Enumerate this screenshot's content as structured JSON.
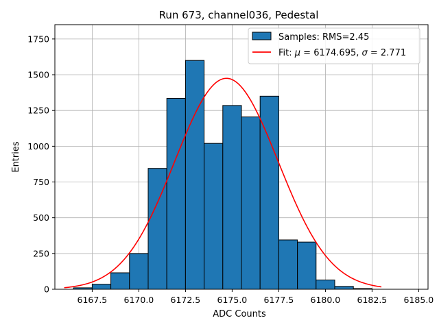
{
  "chart_data": {
    "type": "bar",
    "title": "Run 673, channel036, Pedestal",
    "xlabel": "ADC Counts",
    "ylabel": "Entries",
    "xlim": [
      6165.5,
      6185.5
    ],
    "ylim": [
      0,
      1850
    ],
    "bin_width": 1,
    "bins": [
      {
        "x": 6167,
        "count": 10
      },
      {
        "x": 6168,
        "count": 35
      },
      {
        "x": 6169,
        "count": 115
      },
      {
        "x": 6170,
        "count": 250
      },
      {
        "x": 6171,
        "count": 845
      },
      {
        "x": 6172,
        "count": 1335
      },
      {
        "x": 6173,
        "count": 1600
      },
      {
        "x": 6174,
        "count": 1020
      },
      {
        "x": 6175,
        "count": 1285
      },
      {
        "x": 6176,
        "count": 1205
      },
      {
        "x": 6177,
        "count": 1350
      },
      {
        "x": 6178,
        "count": 345
      },
      {
        "x": 6179,
        "count": 330
      },
      {
        "x": 6180,
        "count": 65
      },
      {
        "x": 6181,
        "count": 20
      },
      {
        "x": 6182,
        "count": 5
      }
    ],
    "fit": {
      "mu": 6174.695,
      "sigma": 2.771,
      "amplitude": 1475,
      "x_range": [
        6166.0,
        6183.0
      ]
    },
    "x_ticks": [
      6167.5,
      6170.0,
      6172.5,
      6175.0,
      6177.5,
      6180.0,
      6182.5,
      6185.0
    ],
    "x_tick_labels": [
      "6167.5",
      "6170.0",
      "6172.5",
      "6175.0",
      "6177.5",
      "6180.0",
      "6182.5",
      "6185.0"
    ],
    "y_ticks": [
      0,
      250,
      500,
      750,
      1000,
      1250,
      1500,
      1750
    ],
    "y_tick_labels": [
      "0",
      "250",
      "500",
      "750",
      "1000",
      "1250",
      "1500",
      "1750"
    ],
    "grid": true,
    "legend": {
      "placement": "top-right",
      "entries": [
        {
          "label": "Samples: RMS=2.45",
          "type": "patch"
        },
        {
          "label_parts": [
            "Fit: ",
            "μ",
            " = 6174.695, ",
            "σ",
            " = 2.771"
          ],
          "type": "line"
        }
      ]
    },
    "colors": {
      "bar": "#1f77b4",
      "bar_edge": "#000000",
      "fit": "#ff0000",
      "grid": "#b0b0b0"
    }
  }
}
